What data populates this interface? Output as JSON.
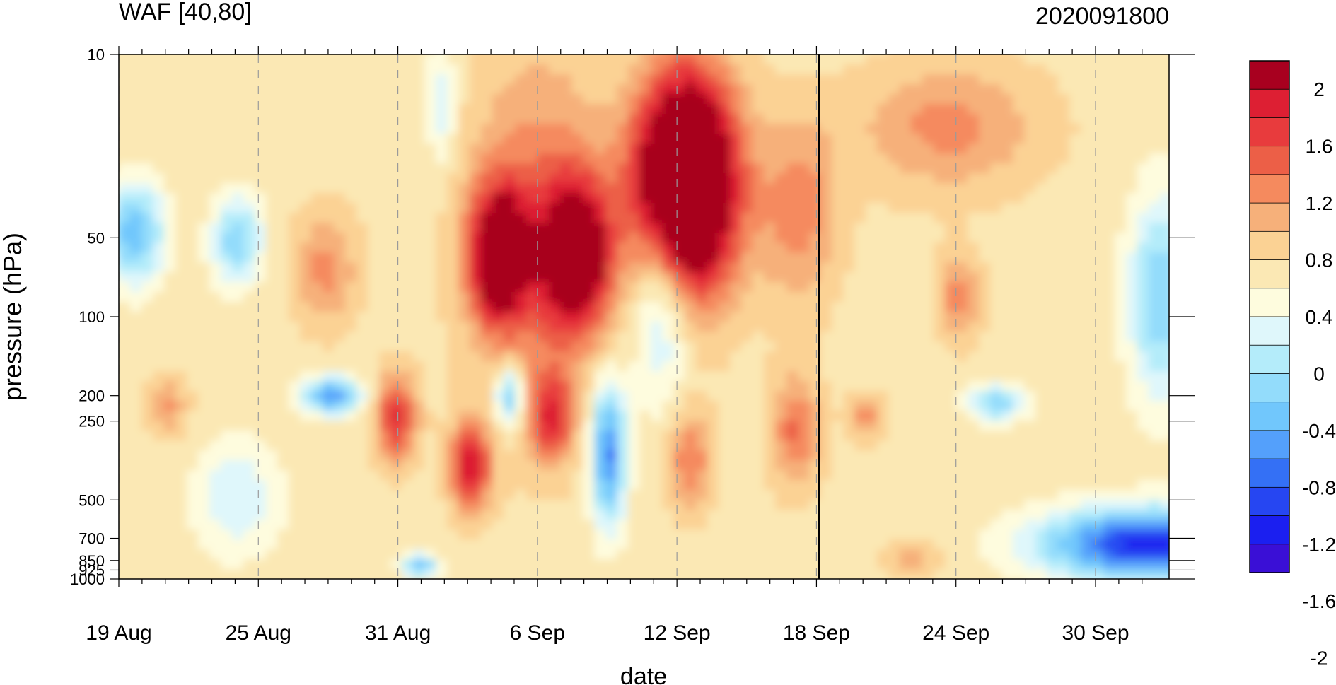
{
  "header": {
    "left_title": "WAF [40,80]",
    "right_title": "2020091800"
  },
  "colors": {
    "levels": [
      "#3a0fd6",
      "#1b1ff0",
      "#2646f2",
      "#3470f5",
      "#54a0fb",
      "#71c7fc",
      "#93dcfb",
      "#b4ecfa",
      "#dff7fb",
      "#fefcde",
      "#fbe8b4",
      "#fbd294",
      "#f6b07a",
      "#f58a5e",
      "#ec5f47",
      "#e83b3d",
      "#dd1f33",
      "#a8001f"
    ]
  },
  "chart_data": {
    "type": "heatmap",
    "title": "WAF [40,80]",
    "subtitle": "2020091800",
    "xlabel": "date",
    "ylabel": "pressure (hPa)",
    "x_ticks": [
      "19 Aug",
      "25 Aug",
      "31 Aug",
      "6 Sep",
      "12 Sep",
      "18 Sep",
      "24 Sep",
      "30 Sep"
    ],
    "y_ticks": [
      10,
      50,
      100,
      200,
      250,
      500,
      700,
      850,
      925,
      1000
    ],
    "y_scale": "log",
    "colorbar_ticks": [
      "2",
      "1.6",
      "1.2",
      "0.8",
      "0.4",
      "0",
      "-0.4",
      "-0.8",
      "-1.2",
      "-1.6",
      "-2"
    ],
    "vertical_line_date": "18 Sep",
    "grid": "dashed vertical at labeled dates"
  }
}
